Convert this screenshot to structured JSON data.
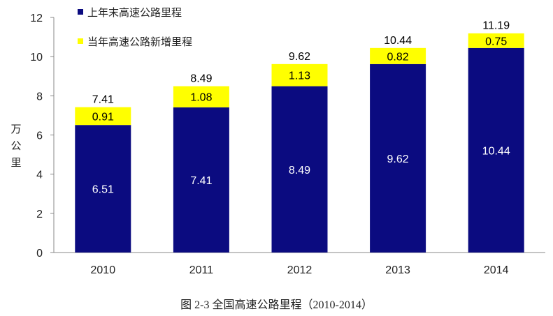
{
  "chart_data": {
    "type": "bar",
    "stacked": true,
    "categories": [
      "2010",
      "2011",
      "2012",
      "2013",
      "2014"
    ],
    "series": [
      {
        "name": "上年末高速公路里程",
        "values": [
          6.51,
          7.41,
          8.49,
          9.62,
          10.44
        ],
        "color": "#0b0b80"
      },
      {
        "name": "当年高速公路新增里程",
        "values": [
          0.91,
          1.08,
          1.13,
          0.82,
          0.75
        ],
        "color": "#ffff00"
      }
    ],
    "totals": [
      "7.41",
      "8.49",
      "9.62",
      "10.44",
      "11.19"
    ],
    "bottom_labels": [
      "6.51",
      "7.41",
      "8.49",
      "9.62",
      "10.44"
    ],
    "top_labels": [
      "0.91",
      "1.08",
      "1.13",
      "0.82",
      "0.75"
    ],
    "yticks": [
      "0",
      "2",
      "4",
      "6",
      "8",
      "10",
      "12"
    ],
    "ylim": [
      0,
      12
    ],
    "ylabel": "万公里",
    "xlabel": "",
    "title": "",
    "legend_position": "top-left",
    "grid": false
  },
  "caption": "图 2-3  全国高速公路里程（2010-2014）"
}
